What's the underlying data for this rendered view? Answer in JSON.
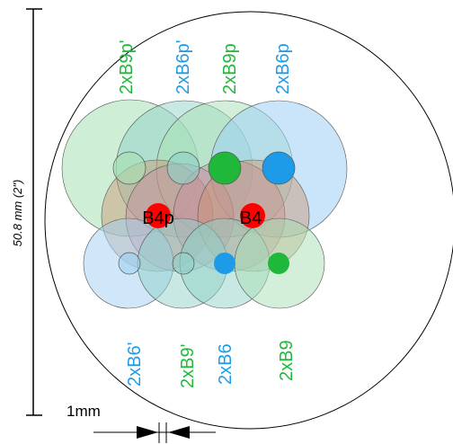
{
  "colors": {
    "green": "#1fb83a",
    "blue": "#1e9be8",
    "red": "#ff0000",
    "outline": "#000000",
    "pale_green": "#a8e0b4",
    "pale_blue": "#9fd0f4",
    "pale_teal": "#8fd2c8",
    "pale_brown": "#c9926e",
    "pale_purple": "#c88aa0"
  },
  "dimension": {
    "label": "50.8 mm   (2\")"
  },
  "scale_bar": {
    "label": "1mm"
  },
  "top_labels": [
    "2xB9p'",
    "2xB6p'",
    "2xB9p",
    "2xB6p"
  ],
  "bottom_labels": [
    "2xB6'",
    "2xB9'",
    "2xB6",
    "2xB9"
  ],
  "center_labels": [
    "B4p",
    "B4"
  ]
}
